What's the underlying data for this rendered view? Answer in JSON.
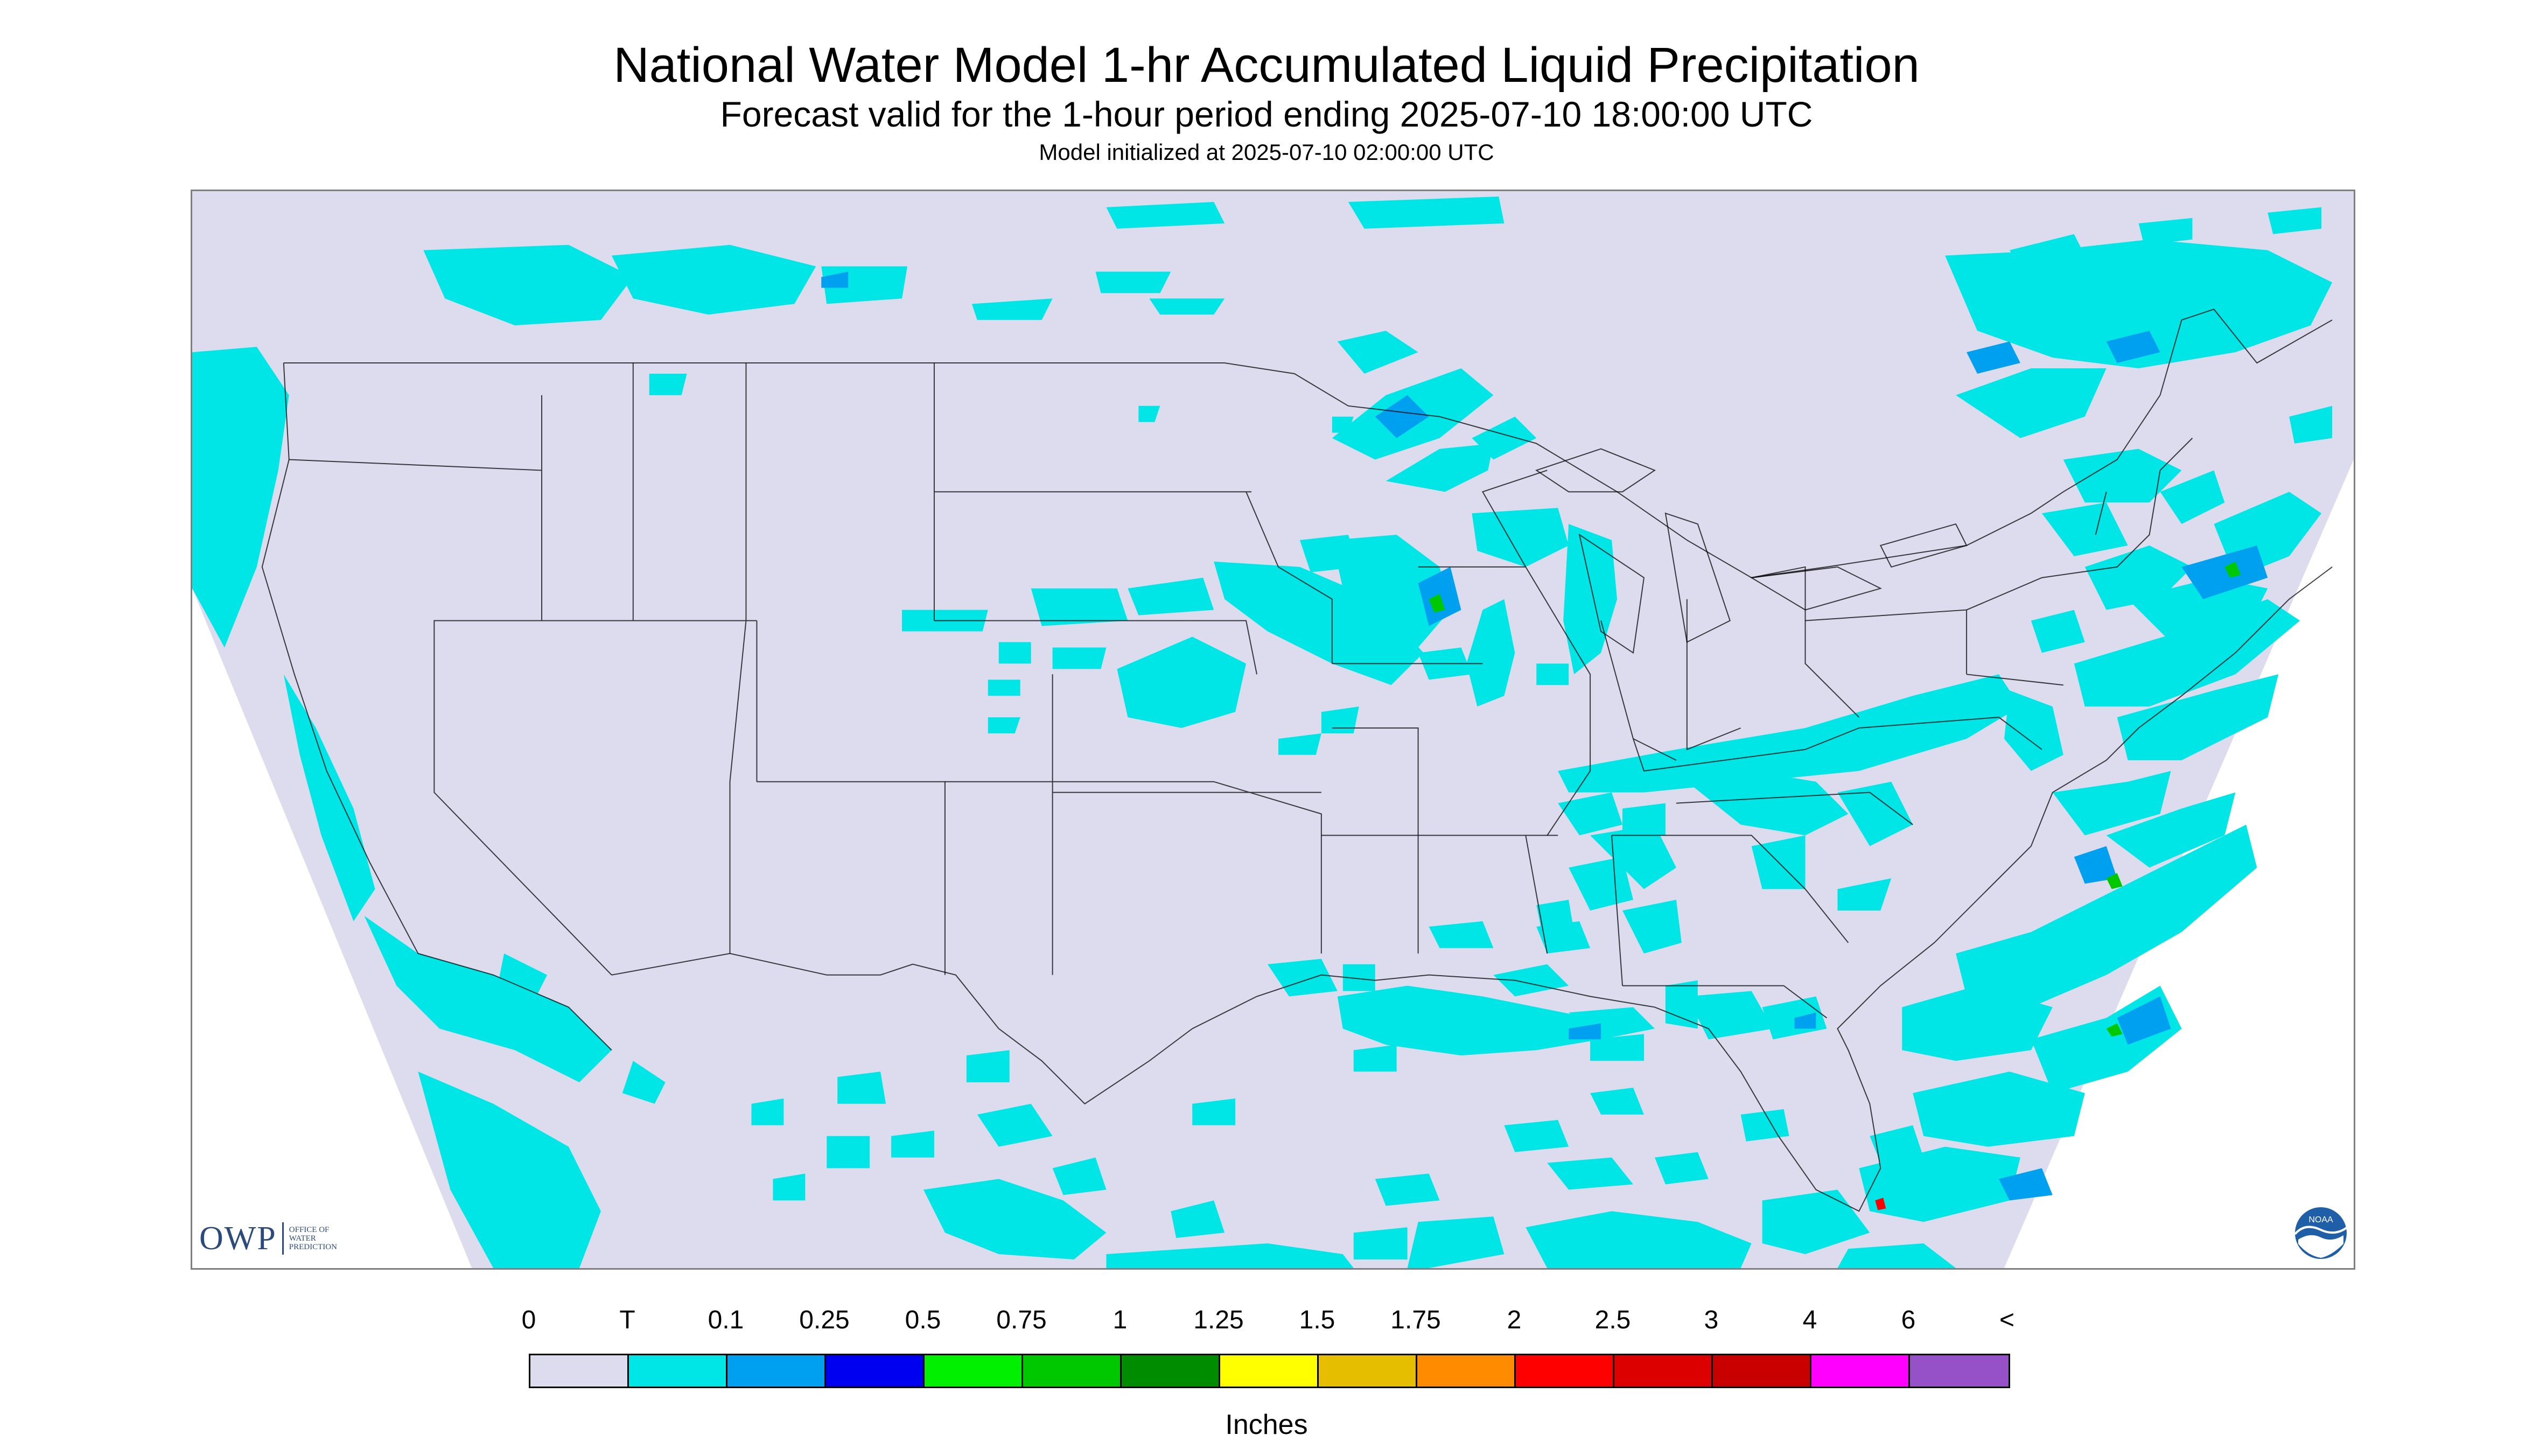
{
  "header": {
    "title": "National Water Model 1-hr Accumulated Liquid Precipitation",
    "subtitle": "Forecast valid for the 1-hour period ending 2025-07-10 18:00:00 UTC",
    "init": "Model initialized at 2025-07-10 02:00:00 UTC"
  },
  "logos": {
    "owp_mark": "OWP",
    "owp_text": "Office of Water Prediction",
    "noaa_text": "NOAA"
  },
  "legend": {
    "labels": [
      "0",
      "T",
      "0.1",
      "0.25",
      "0.5",
      "0.75",
      "1",
      "1.25",
      "1.5",
      "1.75",
      "2",
      "2.5",
      "3",
      "4",
      "6",
      "<"
    ],
    "colors": [
      "#dcdcee",
      "#00e5e5",
      "#00a0f0",
      "#0000f0",
      "#00f000",
      "#00c800",
      "#008c00",
      "#ffff00",
      "#e6be00",
      "#ff8c00",
      "#ff0000",
      "#dc0000",
      "#c80000",
      "#ff00ff",
      "#9650c8"
    ],
    "units": "Inches"
  }
}
